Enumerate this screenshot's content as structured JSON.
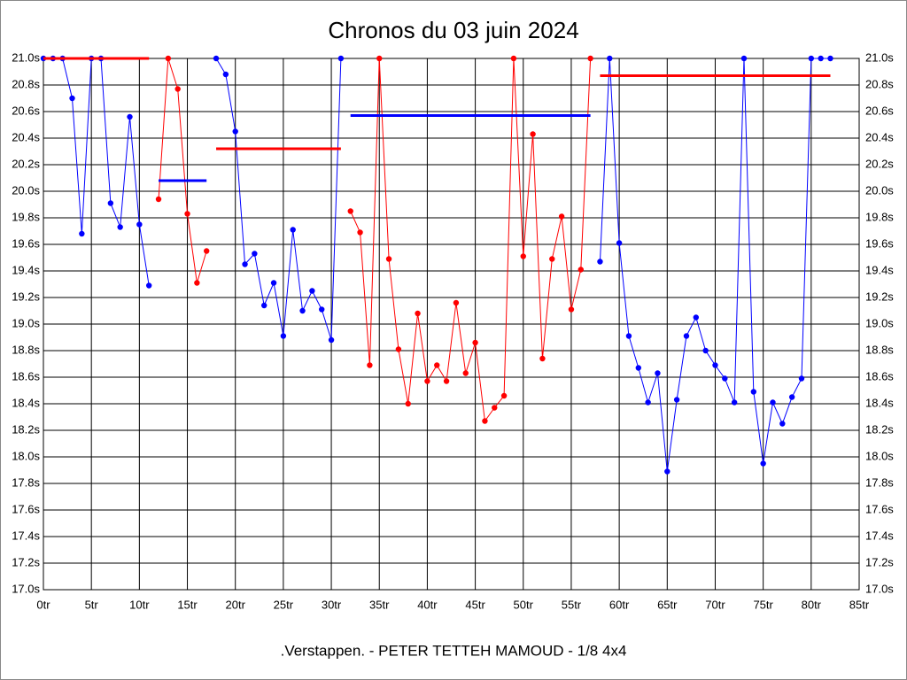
{
  "chart_data": {
    "type": "line",
    "title": "Chronos du 03 juin 2024",
    "footer": ".Verstappen. - PETER TETTEH MAMOUD - 1/8 4x4",
    "xlim": [
      0,
      85
    ],
    "ylim": [
      17,
      21
    ],
    "grid": true,
    "xticks": [
      {
        "value": 0,
        "label": "0tr"
      },
      {
        "value": 5,
        "label": "5tr"
      },
      {
        "value": 10,
        "label": "10tr"
      },
      {
        "value": 15,
        "label": "15tr"
      },
      {
        "value": 20,
        "label": "20tr"
      },
      {
        "value": 25,
        "label": "25tr"
      },
      {
        "value": 30,
        "label": "30tr"
      },
      {
        "value": 35,
        "label": "35tr"
      },
      {
        "value": 40,
        "label": "40tr"
      },
      {
        "value": 45,
        "label": "45tr"
      },
      {
        "value": 50,
        "label": "50tr"
      },
      {
        "value": 55,
        "label": "55tr"
      },
      {
        "value": 60,
        "label": "60tr"
      },
      {
        "value": 65,
        "label": "65tr"
      },
      {
        "value": 70,
        "label": "70tr"
      },
      {
        "value": 75,
        "label": "75tr"
      },
      {
        "value": 80,
        "label": "80tr"
      },
      {
        "value": 85,
        "label": "85tr"
      }
    ],
    "yticks": [
      {
        "value": 17,
        "label": "17.0s"
      },
      {
        "value": 17.2,
        "label": "17.2s"
      },
      {
        "value": 17.4,
        "label": "17.4s"
      },
      {
        "value": 17.6,
        "label": "17.6s"
      },
      {
        "value": 17.8,
        "label": "17.8s"
      },
      {
        "value": 18,
        "label": "18.0s"
      },
      {
        "value": 18.2,
        "label": "18.2s"
      },
      {
        "value": 18.4,
        "label": "18.4s"
      },
      {
        "value": 18.6,
        "label": "18.6s"
      },
      {
        "value": 18.8,
        "label": "18.8s"
      },
      {
        "value": 19,
        "label": "19.0s"
      },
      {
        "value": 19.2,
        "label": "19.2s"
      },
      {
        "value": 19.4,
        "label": "19.4s"
      },
      {
        "value": 19.6,
        "label": "19.6s"
      },
      {
        "value": 19.8,
        "label": "19.8s"
      },
      {
        "value": 20,
        "label": "20.0s"
      },
      {
        "value": 20.2,
        "label": "20.2s"
      },
      {
        "value": 20.4,
        "label": "20.4s"
      },
      {
        "value": 20.6,
        "label": "20.6s"
      },
      {
        "value": 20.8,
        "label": "20.8s"
      },
      {
        "value": 21,
        "label": "21.0s"
      }
    ],
    "series": [
      {
        "color": "#0000ff",
        "x": [
          0,
          1,
          2,
          3,
          4,
          5,
          6,
          7,
          8,
          9,
          10,
          11
        ],
        "values": [
          21.0,
          21.0,
          21.0,
          20.7,
          19.68,
          21.0,
          21.0,
          19.91,
          19.73,
          20.56,
          19.75,
          19.29
        ]
      },
      {
        "color": "#ff0000",
        "x": [
          12,
          13,
          14,
          15,
          16,
          17
        ],
        "values": [
          19.94,
          21.0,
          20.77,
          19.83,
          19.31,
          19.55
        ]
      },
      {
        "color": "#0000ff",
        "x": [
          18,
          19,
          20,
          21,
          22,
          23,
          24,
          25,
          26,
          27,
          28,
          29,
          30,
          31
        ],
        "values": [
          21.0,
          20.88,
          20.45,
          19.45,
          19.53,
          19.14,
          19.31,
          18.91,
          19.71,
          19.1,
          19.25,
          19.11,
          18.88,
          21.0
        ]
      },
      {
        "color": "#ff0000",
        "x": [
          32,
          33,
          34,
          35,
          36,
          37,
          38,
          39,
          40,
          41,
          42,
          43,
          44,
          45,
          46,
          47,
          48,
          49,
          50,
          51,
          52,
          53,
          54,
          55,
          56,
          57
        ],
        "values": [
          19.85,
          19.69,
          18.69,
          21.0,
          19.49,
          18.81,
          18.4,
          19.08,
          18.57,
          18.69,
          18.57,
          19.16,
          18.63,
          18.86,
          18.27,
          18.37,
          18.46,
          21.0,
          19.51,
          20.43,
          18.74,
          19.49,
          19.81,
          19.11,
          19.41,
          21.0
        ]
      },
      {
        "color": "#0000ff",
        "x": [
          58,
          59,
          60,
          61,
          62,
          63,
          64,
          65,
          66,
          67,
          68,
          69,
          70,
          71,
          72,
          73,
          74,
          75,
          76,
          77,
          78,
          79,
          80,
          81,
          82
        ],
        "values": [
          19.47,
          21.0,
          19.61,
          18.91,
          18.67,
          18.41,
          18.63,
          17.89,
          18.43,
          18.91,
          19.05,
          18.8,
          18.69,
          18.59,
          18.41,
          21.0,
          18.49,
          17.95,
          18.41,
          18.25,
          18.45,
          18.59,
          21.0,
          21.0,
          21.0
        ]
      }
    ],
    "mean_lines": [
      {
        "color": "#ff0000",
        "x": [
          0,
          11
        ],
        "value": 21.0
      },
      {
        "color": "#0000ff",
        "x": [
          12,
          17
        ],
        "value": 20.08
      },
      {
        "color": "#ff0000",
        "x": [
          18,
          31
        ],
        "value": 20.32
      },
      {
        "color": "#0000ff",
        "x": [
          32,
          57
        ],
        "value": 20.57
      },
      {
        "color": "#ff0000",
        "x": [
          58,
          82
        ],
        "value": 20.87
      }
    ]
  }
}
